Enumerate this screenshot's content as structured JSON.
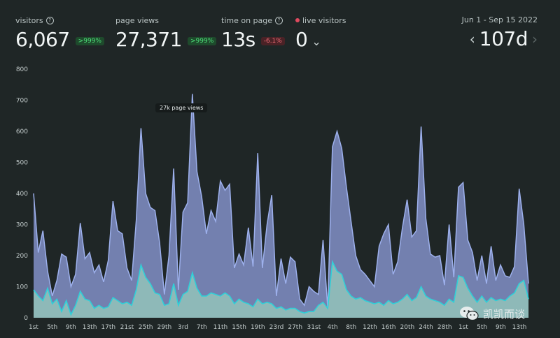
{
  "stats": {
    "visitors": {
      "label": "visitors",
      "value": "6,067",
      "change": ">999%"
    },
    "page_views": {
      "label": "page views",
      "value": "27,371",
      "change": ">999%"
    },
    "time_on_page": {
      "label": "time on page",
      "value": "13s",
      "change": "-6.1%"
    },
    "live_visitors": {
      "label": "live visitors",
      "value": "0"
    }
  },
  "date_range": {
    "label": "Jun 1 - Sep 15 2022",
    "value": "107d"
  },
  "tooltip": "27k page views",
  "watermark": "凯凯而谈",
  "colors": {
    "background": "#1f2626",
    "page_views_fill": "#8391c8",
    "page_views_line": "#9db0ec",
    "visitors_fill": "#8fbcb8",
    "visitors_line": "#2fd0d8",
    "positive_badge": "#4ee07a",
    "negative_badge": "#f06b76",
    "live_dot": "#e04a5f"
  },
  "chart_data": {
    "type": "area",
    "y_ticks": [
      0,
      100,
      200,
      300,
      400,
      500,
      600,
      700,
      800
    ],
    "ylim": [
      0,
      800
    ],
    "x_tick_labels": [
      "1st",
      "5th",
      "9th",
      "13th",
      "17th",
      "21st",
      "25th",
      "29th",
      "3rd",
      "7th",
      "11th",
      "15th",
      "19th",
      "23rd",
      "27th",
      "31st",
      "4th",
      "8th",
      "12th",
      "16th",
      "20th",
      "24th",
      "28th",
      "1st",
      "5th",
      "9th",
      "13th"
    ],
    "grid": false,
    "series": [
      {
        "values": [
          400,
          210,
          280,
          150,
          70,
          120,
          205,
          195,
          100,
          140,
          305,
          190,
          210,
          145,
          170,
          115,
          185,
          375,
          280,
          270,
          160,
          120,
          315,
          610,
          400,
          355,
          345,
          240,
          75,
          200,
          480,
          90,
          340,
          370,
          720,
          470,
          390,
          270,
          345,
          310,
          440,
          410,
          430,
          160,
          205,
          170,
          290,
          165,
          530,
          160,
          300,
          395,
          70,
          190,
          110,
          195,
          180,
          60,
          40,
          100,
          85,
          75,
          250,
          30,
          550,
          600,
          545,
          420,
          310,
          200,
          155,
          140,
          120,
          100,
          230,
          270,
          300,
          140,
          180,
          290,
          380,
          260,
          280,
          615,
          320,
          205,
          195,
          200,
          105,
          300,
          130,
          420,
          435,
          250,
          210,
          120,
          200,
          110,
          230,
          120,
          170,
          135,
          130,
          165,
          415,
          300,
          110
        ]
      },
      {
        "values": [
          90,
          70,
          55,
          95,
          45,
          60,
          20,
          55,
          10,
          40,
          85,
          60,
          55,
          30,
          40,
          30,
          35,
          65,
          55,
          45,
          50,
          40,
          90,
          170,
          130,
          110,
          80,
          75,
          40,
          45,
          110,
          40,
          75,
          85,
          145,
          95,
          70,
          70,
          80,
          75,
          70,
          80,
          70,
          45,
          60,
          50,
          45,
          35,
          60,
          45,
          50,
          45,
          30,
          35,
          25,
          30,
          30,
          20,
          15,
          20,
          20,
          40,
          50,
          30,
          180,
          150,
          140,
          90,
          70,
          60,
          65,
          55,
          50,
          45,
          50,
          40,
          55,
          45,
          50,
          60,
          75,
          55,
          65,
          100,
          70,
          60,
          55,
          50,
          40,
          60,
          50,
          135,
          130,
          95,
          70,
          50,
          70,
          50,
          65,
          55,
          60,
          55,
          70,
          80,
          110,
          120,
          60
        ]
      }
    ]
  }
}
